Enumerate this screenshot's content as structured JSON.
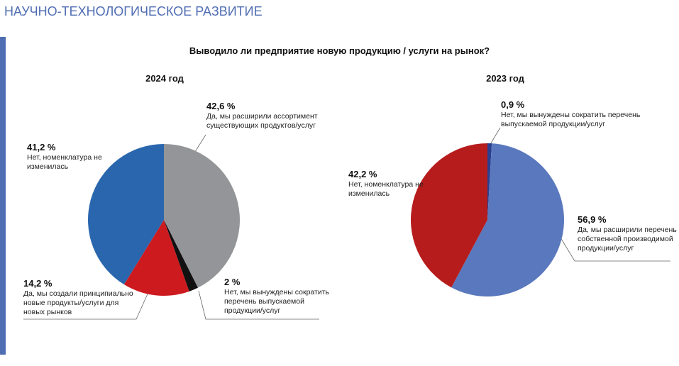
{
  "header": {
    "title": "НАУЧНО-ТЕХНОЛОГИЧЕСКОЕ РАЗВИТИЕ",
    "question": "Выводило ли предприятие новую продукцию / услуги на рынок?"
  },
  "chart_data": [
    {
      "type": "pie",
      "title": "2024 год",
      "categories": [
        "Да, мы расширили ассортимент существующих продуктов/услуг",
        "Нет, мы вынуждены сократить перечень выпускаемой продукции/услуг",
        "Да, мы создали принципиально новые продукты/услуги для новых рынков",
        "Нет, номенклатура не изменилась"
      ],
      "values": [
        42.6,
        2,
        14.2,
        41.2
      ],
      "value_labels": [
        "42,6 %",
        "2 %",
        "14,2 %",
        "41,2 %"
      ],
      "colors": [
        "#939598",
        "#111111",
        "#cc1a1f",
        "#2a66ae"
      ]
    },
    {
      "type": "pie",
      "title": "2023 год",
      "categories": [
        "Нет, мы вынуждены сократить перечень выпускаемой продукции/услуг",
        "Да, мы расширили перечень собственной производимой продукции/услуг",
        "Нет, номенклатура не изменилась"
      ],
      "values": [
        0.9,
        56.9,
        42.2
      ],
      "value_labels": [
        "0,9 %",
        "56,9 %",
        "42,2 %"
      ],
      "colors": [
        "#2a3f8f",
        "#5a78bd",
        "#b71c1c"
      ]
    }
  ]
}
